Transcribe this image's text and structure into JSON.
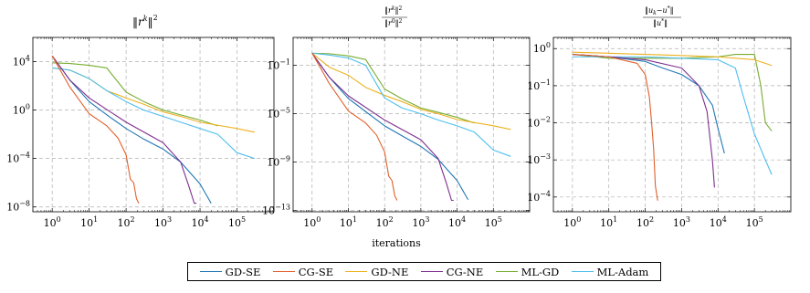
{
  "colors": {
    "GD-SE": "#1f77b4",
    "CG-SE": "#e1602a",
    "GD-NE": "#edb120",
    "CG-NE": "#7e2f8e",
    "ML-GD": "#77ac30",
    "ML-Adam": "#4dbeee"
  },
  "chart_data": [
    {
      "type": "line",
      "title": "‖r^k‖²",
      "title_main": "r",
      "title_sup": "k",
      "title_power": "2",
      "xlabel": "",
      "ylabel": "",
      "xscale": "log",
      "yscale": "log",
      "xlim": [
        0.3,
        1000000
      ],
      "ylim": [
        4e-09,
        1000000
      ],
      "xticks": [
        1,
        10,
        100,
        1000,
        10000,
        100000
      ],
      "xtick_labels": [
        "10^0",
        "10^1",
        "10^2",
        "10^3",
        "10^4",
        "10^5"
      ],
      "yticks": [
        1e-08,
        0.0001,
        1,
        10000
      ],
      "ytick_labels": [
        "10^-8",
        "10^-4",
        "10^0",
        "10^4"
      ],
      "grid": true,
      "series": [
        {
          "name": "GD-SE",
          "x": [
            1,
            3,
            10,
            30,
            100,
            300,
            1000,
            3000,
            10000,
            20000
          ],
          "y": [
            30000,
            300,
            5,
            0.4,
            0.03,
            0.004,
            0.0006,
            5e-05,
            8e-07,
            2e-08
          ]
        },
        {
          "name": "CG-SE",
          "x": [
            1,
            3,
            10,
            30,
            60,
            100,
            130,
            160,
            190,
            220
          ],
          "y": [
            30000,
            80,
            0.5,
            0.05,
            0.005,
            0.0002,
            2e-06,
            1e-06,
            5e-08,
            2e-08
          ]
        },
        {
          "name": "GD-NE",
          "x": [
            1,
            3,
            10,
            30,
            100,
            300,
            1000,
            3000,
            10000,
            100000,
            300000
          ],
          "y": [
            3000,
            2000,
            400,
            40,
            10,
            3,
            0.7,
            0.3,
            0.1,
            0.03,
            0.015
          ]
        },
        {
          "name": "CG-NE",
          "x": [
            1,
            3,
            10,
            100,
            1000,
            3000,
            5000,
            7000,
            8000
          ],
          "y": [
            30000,
            300,
            10,
            0.1,
            0.002,
            5e-05,
            5e-07,
            2e-08,
            2e-08
          ]
        },
        {
          "name": "ML-GD",
          "x": [
            1,
            3,
            10,
            30,
            100,
            300,
            1000,
            3000,
            10000,
            30000
          ],
          "y": [
            8000,
            7000,
            5000,
            3000,
            30,
            5,
            1,
            0.4,
            0.15,
            0.05
          ]
        },
        {
          "name": "ML-Adam",
          "x": [
            1,
            3,
            10,
            30,
            100,
            300,
            1000,
            3000,
            10000,
            30000,
            100000,
            300000
          ],
          "y": [
            3000,
            2000,
            400,
            40,
            5,
            1,
            0.3,
            0.1,
            0.03,
            0.01,
            0.0003,
            0.0001
          ]
        }
      ]
    },
    {
      "type": "line",
      "title": "‖r^k‖² / ‖r^0‖²",
      "title_num_main": "r",
      "title_num_sup": "k",
      "title_den_main": "r",
      "title_den_sup": "0",
      "title_power": "2",
      "xlabel": "iterations",
      "ylabel": "",
      "xscale": "log",
      "yscale": "log",
      "xlim": [
        0.3,
        1000000
      ],
      "ylim": [
        8e-14,
        20
      ],
      "xticks": [
        1,
        10,
        100,
        1000,
        10000,
        100000
      ],
      "xtick_labels": [
        "10^0",
        "10^1",
        "10^2",
        "10^3",
        "10^4",
        "10^5"
      ],
      "yticks": [
        1e-13,
        1e-09,
        1e-05,
        0.1
      ],
      "ytick_labels": [
        "10^-13",
        "10^-9",
        "10^-5",
        "10^-1"
      ],
      "grid": true,
      "series": [
        {
          "name": "GD-SE",
          "x": [
            1,
            3,
            10,
            30,
            100,
            300,
            1000,
            3000,
            10000,
            20000
          ],
          "y": [
            1,
            0.01,
            0.00018,
            1.5e-05,
            1e-06,
            1.5e-07,
            2e-08,
            1.7e-09,
            3e-11,
            8e-13
          ]
        },
        {
          "name": "CG-SE",
          "x": [
            1,
            3,
            10,
            30,
            60,
            100,
            130,
            160,
            190,
            220
          ],
          "y": [
            1,
            0.003,
            1.7e-05,
            1.7e-06,
            1.7e-07,
            7e-09,
            7e-11,
            3e-11,
            1.7e-12,
            7e-13
          ]
        },
        {
          "name": "GD-NE",
          "x": [
            1,
            3,
            10,
            30,
            100,
            300,
            1000,
            3000,
            10000,
            100000,
            300000
          ],
          "y": [
            1,
            0.07,
            0.015,
            0.0015,
            0.00033,
            0.0001,
            2.3e-05,
            1e-05,
            3.3e-06,
            1e-06,
            5e-07
          ]
        },
        {
          "name": "CG-NE",
          "x": [
            1,
            3,
            10,
            100,
            1000,
            3000,
            5000,
            7000,
            8000
          ],
          "y": [
            1,
            0.01,
            0.0003,
            3e-06,
            7e-08,
            2e-09,
            2e-11,
            7e-13,
            7e-13
          ]
        },
        {
          "name": "ML-GD",
          "x": [
            1,
            3,
            10,
            30,
            100,
            300,
            1000,
            3000,
            10000,
            30000
          ],
          "y": [
            1,
            0.9,
            0.6,
            0.3,
            0.0011,
            0.00017,
            3e-05,
            1.3e-05,
            5e-06,
            1.7e-06
          ]
        },
        {
          "name": "ML-Adam",
          "x": [
            1,
            3,
            10,
            30,
            100,
            300,
            1000,
            3000,
            10000,
            30000,
            100000,
            300000
          ],
          "y": [
            1,
            0.7,
            0.4,
            0.1,
            0.0002,
            3e-05,
            1e-05,
            3e-06,
            1e-06,
            3e-07,
            1e-08,
            3e-09
          ]
        }
      ]
    },
    {
      "type": "line",
      "title": "‖u_k − u*‖ / ‖u*‖",
      "title_num_text": "u",
      "title_num_sub": "k",
      "title_num_rest": "−u",
      "title_den_text": "u",
      "title_star": "*",
      "xlabel": "",
      "ylabel": "",
      "xscale": "log",
      "yscale": "log",
      "xlim": [
        0.3,
        1000000
      ],
      "ylim": [
        4e-05,
        2
      ],
      "xticks": [
        1,
        10,
        100,
        1000,
        10000,
        100000
      ],
      "xtick_labels": [
        "10^0",
        "10^1",
        "10^2",
        "10^3",
        "10^4",
        "10^5"
      ],
      "yticks": [
        0.0001,
        0.001,
        0.01,
        0.1,
        1
      ],
      "ytick_labels": [
        "10^-4",
        "10^-3",
        "10^-2",
        "10^-1",
        "10^0"
      ],
      "grid": true,
      "series": [
        {
          "name": "GD-SE",
          "x": [
            1,
            10,
            100,
            300,
            1000,
            3000,
            7000,
            10000,
            15000
          ],
          "y": [
            0.7,
            0.6,
            0.45,
            0.3,
            0.2,
            0.1,
            0.03,
            0.007,
            0.0015
          ]
        },
        {
          "name": "CG-SE",
          "x": [
            1,
            10,
            60,
            100,
            130,
            150,
            170,
            190,
            220
          ],
          "y": [
            0.7,
            0.6,
            0.4,
            0.2,
            0.05,
            0.01,
            0.002,
            0.0002,
            8e-05
          ]
        },
        {
          "name": "GD-NE",
          "x": [
            1,
            10,
            100,
            1000,
            10000,
            100000,
            300000
          ],
          "y": [
            0.8,
            0.75,
            0.7,
            0.65,
            0.6,
            0.5,
            0.35
          ]
        },
        {
          "name": "CG-NE",
          "x": [
            1,
            10,
            100,
            1000,
            3000,
            5000,
            7000,
            8000
          ],
          "y": [
            0.7,
            0.6,
            0.5,
            0.3,
            0.1,
            0.02,
            0.001,
            0.00018
          ]
        },
        {
          "name": "ML-GD",
          "x": [
            1,
            10,
            100,
            1000,
            10000,
            30000,
            100000,
            150000,
            200000,
            300000
          ],
          "y": [
            0.7,
            0.55,
            0.55,
            0.55,
            0.6,
            0.7,
            0.7,
            0.1,
            0.01,
            0.006
          ]
        },
        {
          "name": "ML-Adam",
          "x": [
            1,
            10,
            100,
            1000,
            10000,
            30000,
            50000,
            100000,
            200000,
            300000
          ],
          "y": [
            0.6,
            0.6,
            0.6,
            0.55,
            0.5,
            0.3,
            0.05,
            0.005,
            0.001,
            0.0004
          ]
        }
      ]
    }
  ],
  "legend": {
    "items": [
      {
        "label": "GD-SE",
        "key": "GD-SE"
      },
      {
        "label": "CG-SE",
        "key": "CG-SE"
      },
      {
        "label": "GD-NE",
        "key": "GD-NE"
      },
      {
        "label": "CG-NE",
        "key": "CG-NE"
      },
      {
        "label": "ML-GD",
        "key": "ML-GD"
      },
      {
        "label": "ML-Adam",
        "key": "ML-Adam"
      }
    ]
  }
}
